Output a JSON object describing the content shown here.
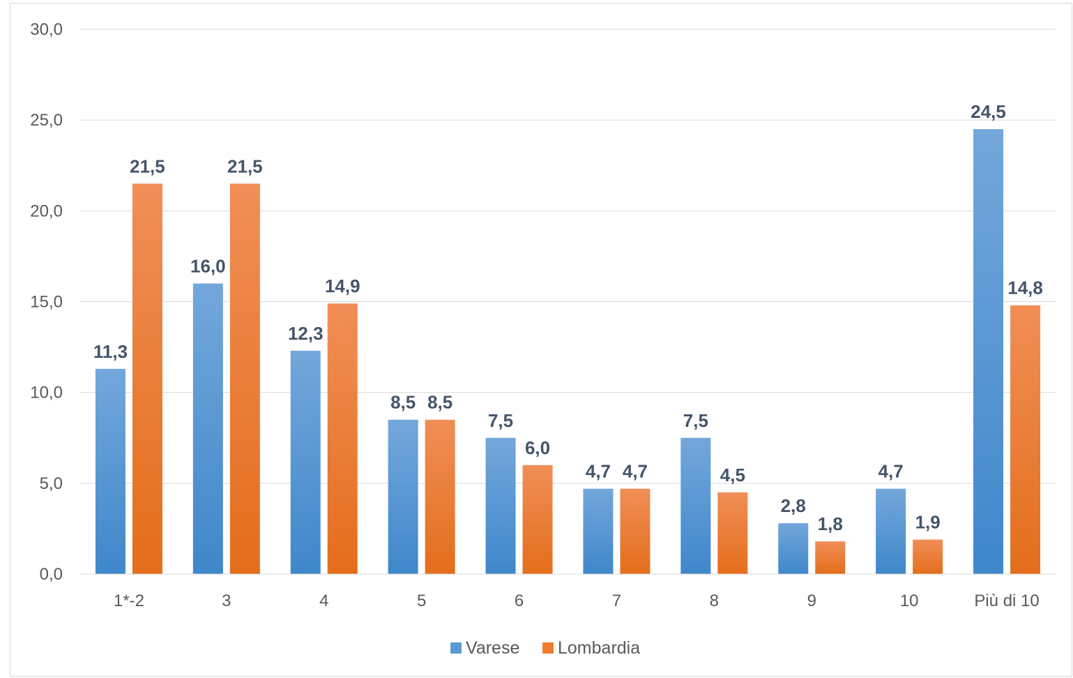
{
  "chart_data": {
    "type": "bar",
    "categories": [
      "1*-2",
      "3",
      "4",
      "5",
      "6",
      "7",
      "8",
      "9",
      "10",
      "Più di 10"
    ],
    "series": [
      {
        "name": "Varese",
        "values": [
          11.3,
          16.0,
          12.3,
          8.5,
          7.5,
          4.7,
          7.5,
          2.8,
          4.7,
          24.5
        ],
        "labels": [
          "11,3",
          "16,0",
          "12,3",
          "8,5",
          "7,5",
          "4,7",
          "7,5",
          "2,8",
          "4,7",
          "24,5"
        ],
        "color": "#5b9bd5"
      },
      {
        "name": "Lombardia",
        "values": [
          21.5,
          21.5,
          14.9,
          8.5,
          6.0,
          4.7,
          4.5,
          1.8,
          1.9,
          14.8
        ],
        "labels": [
          "21,5",
          "21,5",
          "14,9",
          "8,5",
          "6,0",
          "4,7",
          "4,5",
          "1,8",
          "1,9",
          "14,8"
        ],
        "color": "#ed7d31"
      }
    ],
    "ylim": [
      0,
      30
    ],
    "yticks": [
      "0,0",
      "5,0",
      "10,0",
      "15,0",
      "20,0",
      "25,0",
      "30,0"
    ],
    "grid": true,
    "legend_position": "bottom"
  }
}
